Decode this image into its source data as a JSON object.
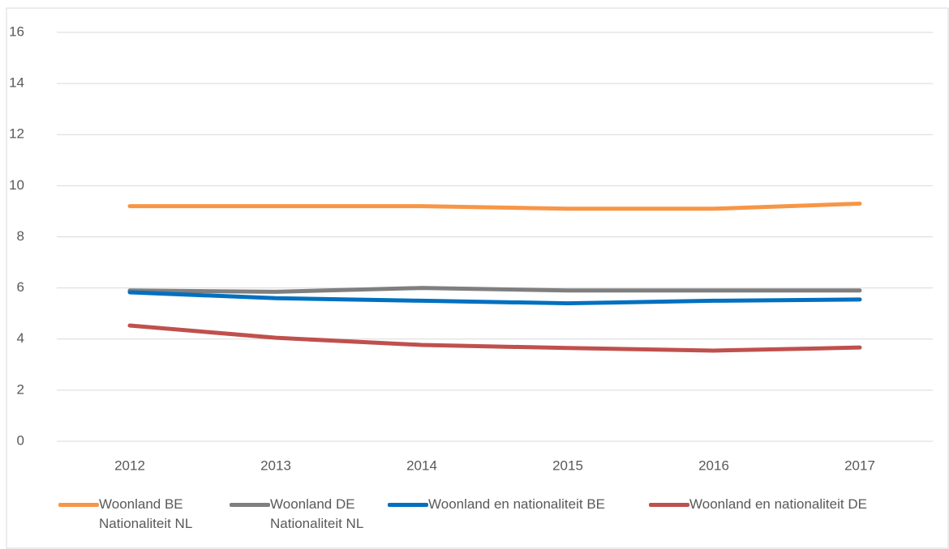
{
  "chart_data": {
    "type": "line",
    "x": [
      "2012",
      "2013",
      "2014",
      "2015",
      "2016",
      "2017"
    ],
    "series": [
      {
        "name": "Woonland BE Nationaliteit NL",
        "color": "#f79646",
        "values": [
          9.2,
          9.2,
          9.2,
          9.1,
          9.1,
          9.3
        ]
      },
      {
        "name": "Woonland DE Nationaliteit NL",
        "color": "#7f7f7f",
        "values": [
          5.9,
          5.85,
          6.0,
          5.9,
          5.9,
          5.9
        ]
      },
      {
        "name": "Woonland en nationaliteit BE",
        "color": "#0070c0",
        "values": [
          5.83,
          5.6,
          5.5,
          5.4,
          5.5,
          5.55
        ]
      },
      {
        "name": "Woonland en nationaliteit DE",
        "color": "#c0504d",
        "values": [
          4.53,
          4.05,
          3.77,
          3.65,
          3.55,
          3.67
        ]
      }
    ],
    "ylim": [
      0,
      16
    ],
    "yticks": [
      0,
      2,
      4,
      6,
      8,
      10,
      12,
      14,
      16
    ],
    "grid": true,
    "legend": "bottom"
  }
}
